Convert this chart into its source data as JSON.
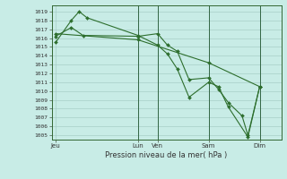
{
  "bg_color": "#c8ece6",
  "grid_color": "#a0c8c0",
  "line_color": "#2d6e2d",
  "xlabel": "Pression niveau de la mer( hPa )",
  "ylim": [
    1004.5,
    1019.7
  ],
  "yticks": [
    1005,
    1006,
    1007,
    1008,
    1009,
    1010,
    1011,
    1012,
    1013,
    1014,
    1015,
    1016,
    1017,
    1018,
    1019
  ],
  "xtick_labels": [
    "Jeu",
    "Lun",
    "Ven",
    "Sam",
    "Dim"
  ],
  "xtick_positions": [
    0,
    42,
    52,
    78,
    104
  ],
  "vlines": [
    42,
    52,
    78,
    104
  ],
  "xlim": [
    -2,
    115
  ],
  "line1_x": [
    0,
    8,
    12,
    16,
    42,
    52,
    57,
    62,
    68,
    78,
    83,
    88,
    98,
    104
  ],
  "line1_y": [
    1015.5,
    1018.0,
    1019.0,
    1018.3,
    1016.3,
    1015.2,
    1014.2,
    1012.5,
    1009.3,
    1011.0,
    1010.5,
    1008.2,
    1004.8,
    1010.5
  ],
  "line2_x": [
    0,
    8,
    14,
    42,
    52,
    57,
    62,
    68,
    78,
    83,
    88,
    95,
    98,
    104
  ],
  "line2_y": [
    1016.2,
    1017.2,
    1016.3,
    1016.2,
    1016.5,
    1015.2,
    1014.5,
    1011.3,
    1011.5,
    1010.2,
    1008.7,
    1007.2,
    1005.0,
    1010.5
  ],
  "line3_x": [
    0,
    42,
    78,
    104
  ],
  "line3_y": [
    1016.5,
    1015.8,
    1013.2,
    1010.5
  ],
  "figsize": [
    3.2,
    2.0
  ],
  "dpi": 100
}
